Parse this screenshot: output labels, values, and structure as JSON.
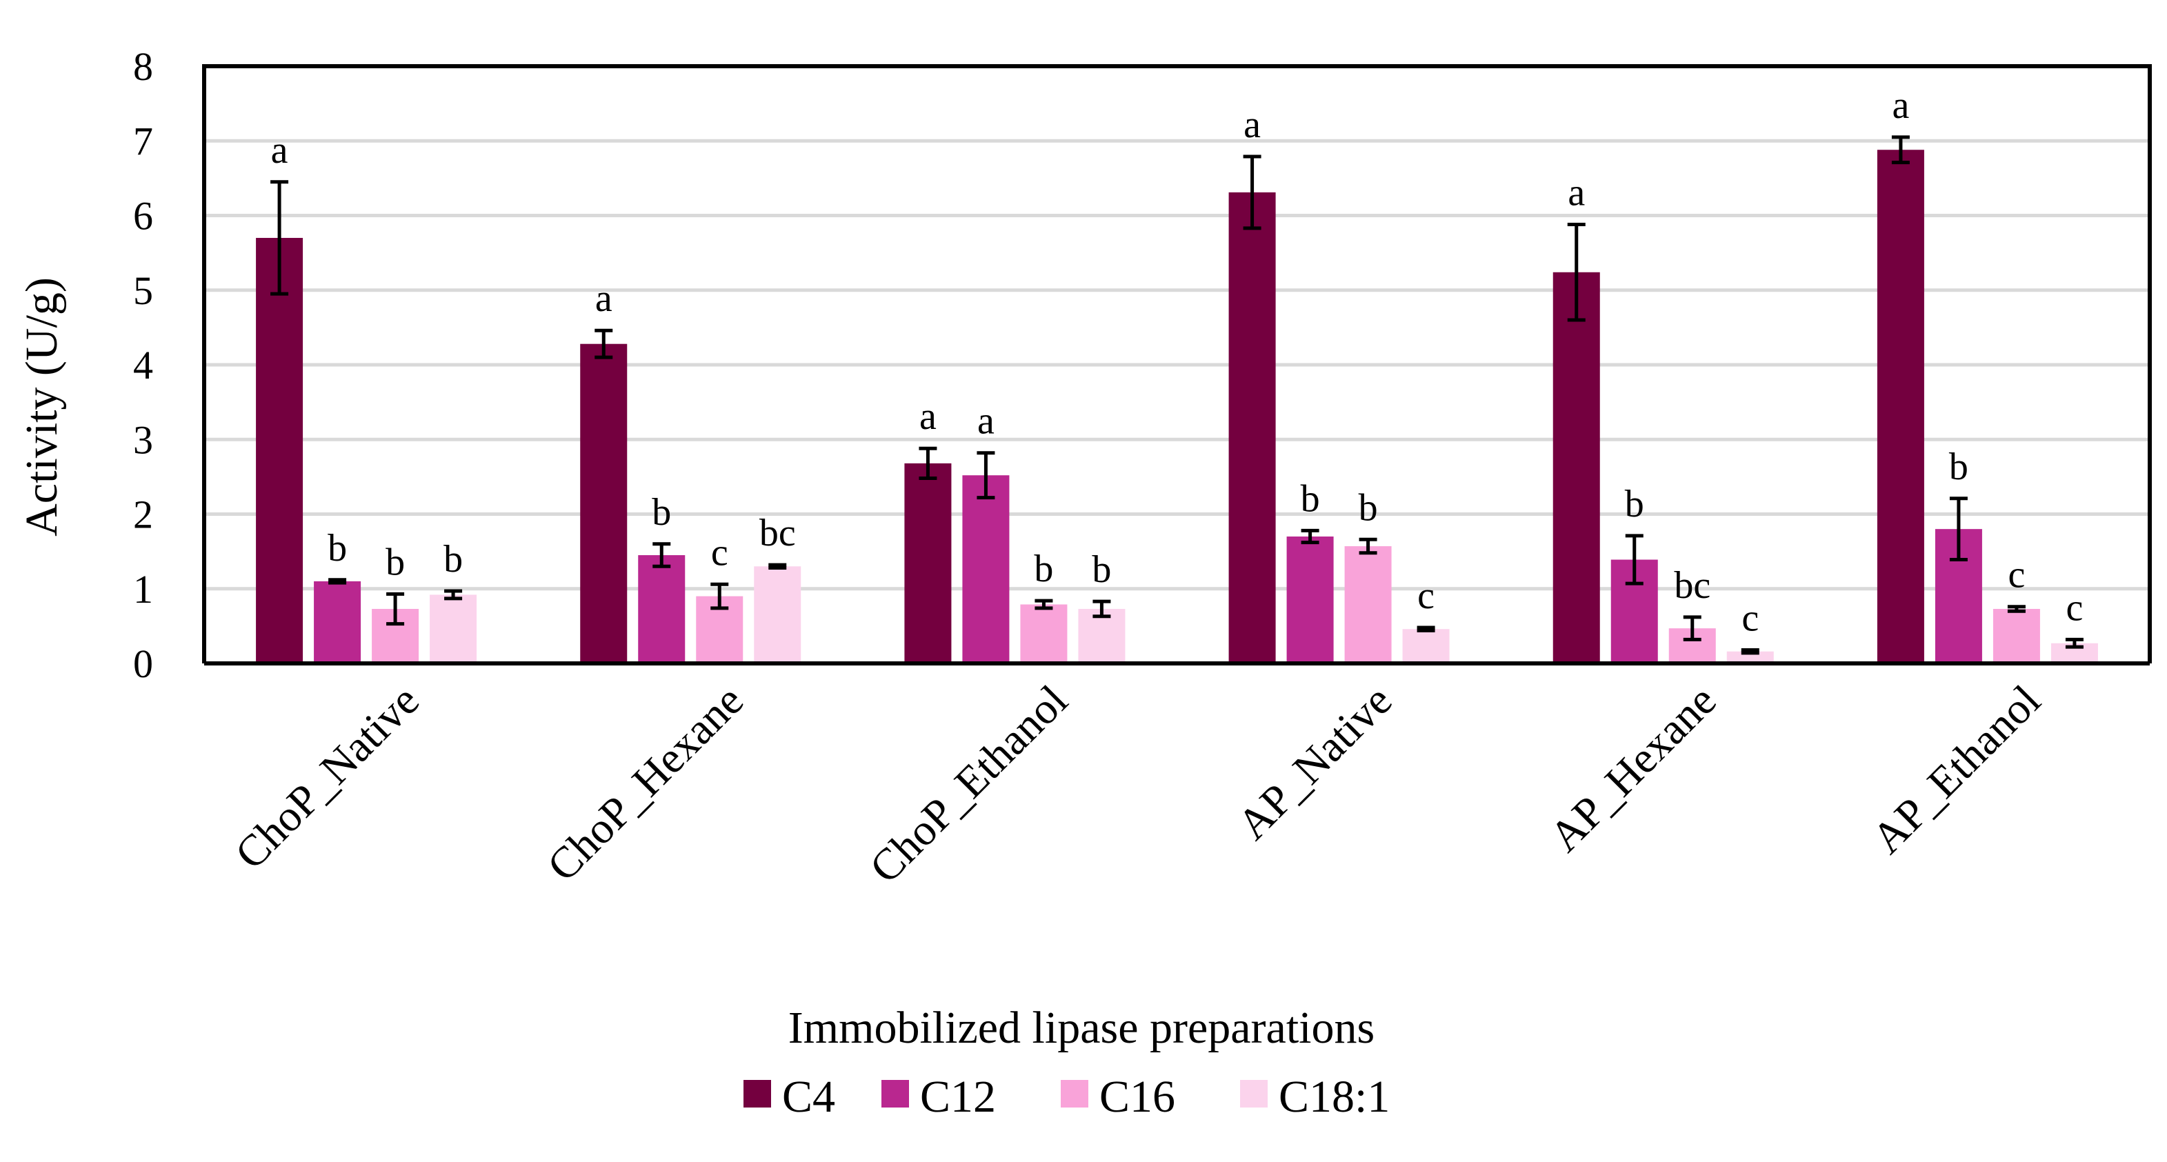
{
  "chart_data": {
    "type": "bar",
    "title": "",
    "xlabel": "Immobilized lipase preparations",
    "ylabel": "Activity (U/g)",
    "ylim": [
      0,
      8
    ],
    "yticks": [
      0,
      1,
      2,
      3,
      4,
      5,
      6,
      7,
      8
    ],
    "grid": true,
    "legend_position": "bottom",
    "categories": [
      "ChoP_Native",
      "ChoP_Hexane",
      "ChoP_Ethanol",
      "AP_Native",
      "AP_Hexane",
      "AP_Ethanol"
    ],
    "series": [
      {
        "name": "C4",
        "color": "#74003f",
        "values": [
          5.7,
          4.28,
          2.68,
          6.31,
          5.24,
          6.88
        ],
        "errors": [
          0.75,
          0.18,
          0.2,
          0.48,
          0.64,
          0.17
        ],
        "letters": [
          "a",
          "a",
          "a",
          "a",
          "a",
          "a"
        ]
      },
      {
        "name": "C12",
        "color": "#b9278f",
        "values": [
          1.1,
          1.45,
          2.52,
          1.7,
          1.39,
          1.8
        ],
        "errors": [
          0.02,
          0.15,
          0.3,
          0.08,
          0.32,
          0.41
        ],
        "letters": [
          "b",
          "b",
          "a",
          "b",
          "b",
          "b"
        ]
      },
      {
        "name": "C16",
        "color": "#f9a3d9",
        "values": [
          0.73,
          0.9,
          0.79,
          1.57,
          0.47,
          0.73
        ],
        "errors": [
          0.2,
          0.16,
          0.05,
          0.09,
          0.15,
          0.03
        ],
        "letters": [
          "b",
          "c",
          "b",
          "b",
          "bc",
          "c"
        ]
      },
      {
        "name": "C18:1",
        "color": "#fbd3ec",
        "values": [
          0.92,
          1.3,
          0.73,
          0.46,
          0.16,
          0.27
        ],
        "errors": [
          0.05,
          0.02,
          0.1,
          0.02,
          0.02,
          0.05
        ],
        "letters": [
          "b",
          "bc",
          "b",
          "c",
          "c",
          "c"
        ]
      }
    ]
  }
}
